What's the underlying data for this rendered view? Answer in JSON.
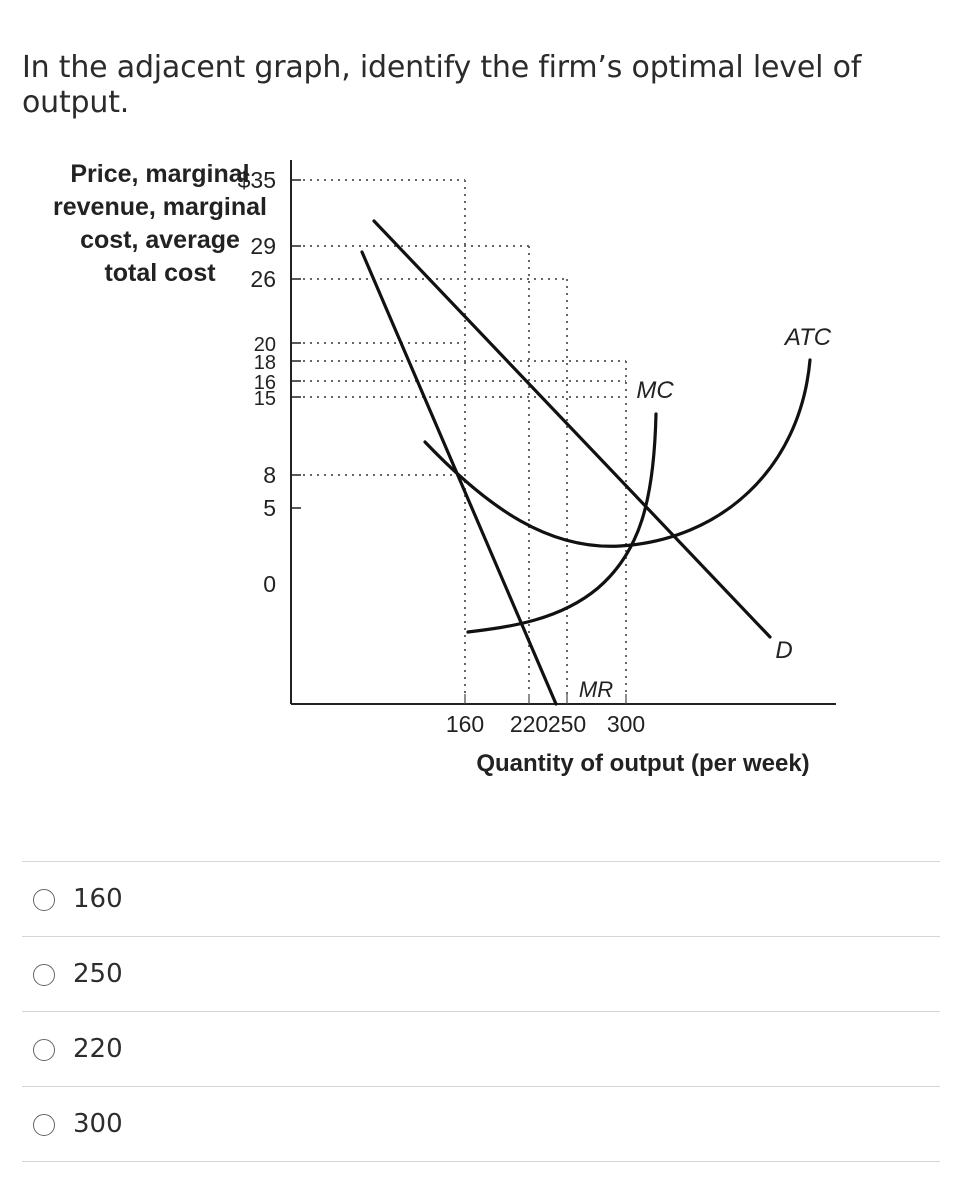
{
  "question": {
    "text": "In the adjacent graph, identify the firm’s optimal level of output."
  },
  "chart_data": {
    "type": "line",
    "ylabel_lines": [
      "Price, marginal",
      "revenue, marginal",
      "cost, average",
      "total cost"
    ],
    "xlabel": "Quantity of output (per week)",
    "y_ticks": [
      {
        "value": 35,
        "label": "$35"
      },
      {
        "value": 29,
        "label": "29"
      },
      {
        "value": 26,
        "label": "26"
      },
      {
        "value": 20,
        "label": "20"
      },
      {
        "value": 18,
        "label": "18"
      },
      {
        "value": 16,
        "label": "16"
      },
      {
        "value": 15,
        "label": "15"
      },
      {
        "value": 8,
        "label": "8"
      },
      {
        "value": 5,
        "label": "5"
      },
      {
        "value": 0,
        "label": "0"
      }
    ],
    "x_ticks": [
      {
        "value": 160,
        "label": "160"
      },
      {
        "value": 220,
        "label": "220"
      },
      {
        "value": 250,
        "label": "250"
      },
      {
        "value": 300,
        "label": "300"
      }
    ],
    "series": [
      {
        "name": "D",
        "points": [
          [
            80,
            44
          ],
          [
            476,
            6
          ]
        ]
      },
      {
        "name": "MR",
        "points": [
          [
            70,
            41
          ],
          [
            250,
            0
          ]
        ]
      },
      {
        "name": "MC",
        "points": [
          [
            160,
            7
          ],
          [
            200,
            7.4
          ],
          [
            220,
            8
          ],
          [
            260,
            11
          ],
          [
            300,
            15
          ],
          [
            325,
            20
          ],
          [
            337,
            26
          ],
          [
            340,
            28
          ]
        ]
      },
      {
        "name": "ATC",
        "points": [
          [
            130,
            24
          ],
          [
            160,
            20
          ],
          [
            200,
            17
          ],
          [
            250,
            15.3
          ],
          [
            300,
            15
          ],
          [
            370,
            16
          ],
          [
            420,
            20
          ],
          [
            460,
            27
          ],
          [
            475,
            31
          ]
        ]
      }
    ],
    "guide_points": [
      {
        "x": 160,
        "y": 20
      },
      {
        "x": 220,
        "y": 8
      },
      {
        "x": 250,
        "y": 26
      },
      {
        "x": 300,
        "y": 18
      }
    ],
    "curve_labels": {
      "D": "D",
      "MR": "MR",
      "MC": "MC",
      "ATC": "ATC"
    }
  },
  "answers": [
    {
      "label": "160"
    },
    {
      "label": "250"
    },
    {
      "label": "220"
    },
    {
      "label": "300"
    }
  ]
}
